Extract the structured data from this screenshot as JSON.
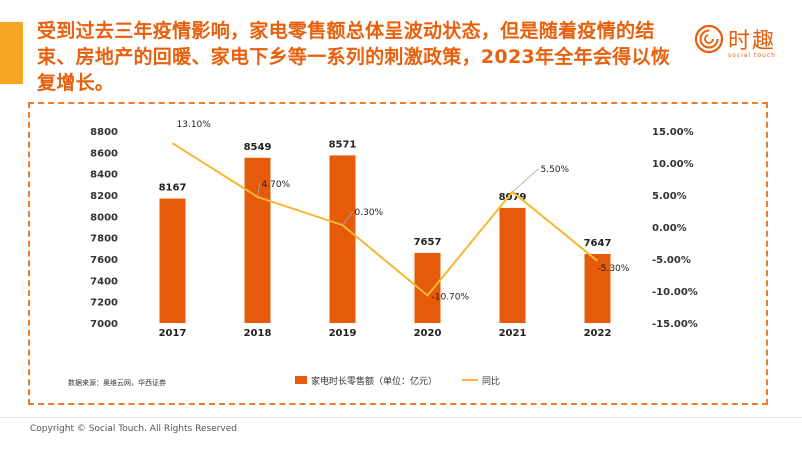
{
  "headline": "受到过去三年疫情影响，家电零售额总体呈波动状态，但是随着疫情的结束、房地产的回暖、家电下乡等一系列的刺激政策，2023年全年会得以恢复增长。",
  "brand": {
    "name": "时趣",
    "tagline": "social touch"
  },
  "footer": "Copyright © Social Touch. All Rights Reserved",
  "colors": {
    "accent": "#f5a623",
    "bar": "#e65a0c",
    "line": "#f5b731",
    "frame": "#f07b2a"
  },
  "chart_data": {
    "type": "bar+line",
    "categories": [
      "2017",
      "2018",
      "2019",
      "2020",
      "2021",
      "2022"
    ],
    "series": [
      {
        "name": "家电时长零售额（单位：亿元）",
        "type": "bar",
        "axis": "left",
        "values": [
          8167,
          8549,
          8571,
          7657,
          8079,
          7647
        ],
        "labels": [
          "8167",
          "8549",
          "8571",
          "7657",
          "8079",
          "7647"
        ]
      },
      {
        "name": "同比",
        "type": "line",
        "axis": "right",
        "values": [
          13.1,
          4.7,
          0.3,
          -10.7,
          5.5,
          -5.3
        ],
        "labels": [
          "13.10%",
          "4.70%",
          "0.30%",
          "-10.70%",
          "5.50%",
          "-5.30%"
        ]
      }
    ],
    "y_left": {
      "min": 7000,
      "max": 8800,
      "ticks": [
        "7000",
        "7200",
        "7400",
        "7600",
        "7800",
        "8000",
        "8200",
        "8400",
        "8600",
        "8800"
      ]
    },
    "y_right": {
      "min": -15,
      "max": 15,
      "ticks": [
        "-15.00%",
        "-10.00%",
        "-5.00%",
        "0.00%",
        "5.00%",
        "10.00%",
        "15.00%"
      ]
    },
    "source": "数据来源：奥维云网，华西证券",
    "legend_position": "bottom"
  }
}
